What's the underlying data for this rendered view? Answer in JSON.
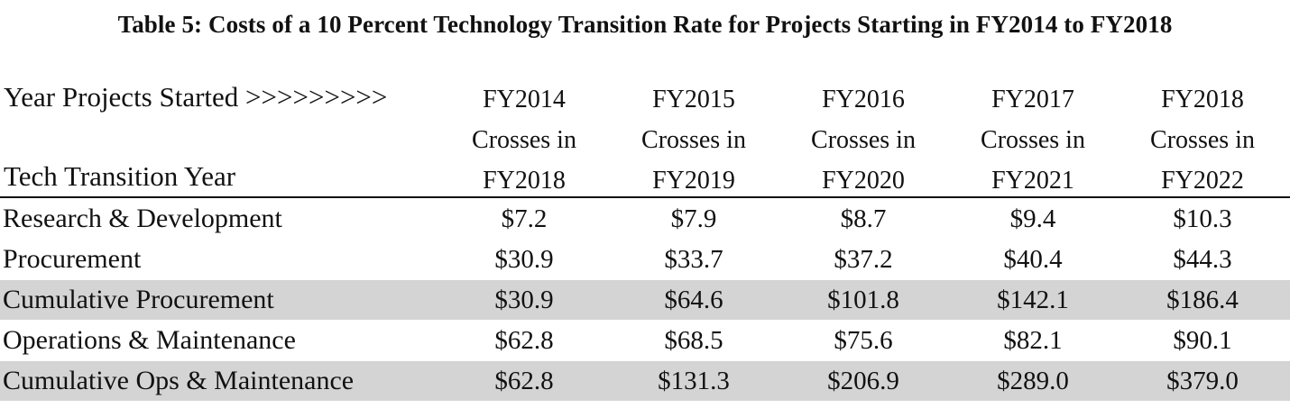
{
  "title": "Table 5: Costs of a 10 Percent Technology Transition Rate for Projects Starting in FY2014 to FY2018",
  "header": {
    "row_label_1": "Year Projects Started  >>>>>>>>>",
    "row_label_2": "Tech Transition Year",
    "columns": [
      {
        "year": "FY2014",
        "crosses": "Crosses in",
        "transition": "FY2018"
      },
      {
        "year": "FY2015",
        "crosses": "Crosses in",
        "transition": "FY2019"
      },
      {
        "year": "FY2016",
        "crosses": "Crosses in",
        "transition": "FY2020"
      },
      {
        "year": "FY2017",
        "crosses": "Crosses in",
        "transition": "FY2021"
      },
      {
        "year": "FY2018",
        "crosses": "Crosses in",
        "transition": "FY2022"
      }
    ]
  },
  "rows": [
    {
      "label": "Research & Development",
      "values": [
        "$7.2",
        "$7.9",
        "$8.7",
        "$9.4",
        "$10.3"
      ],
      "shaded": false
    },
    {
      "label": "Procurement",
      "values": [
        "$30.9",
        "$33.7",
        "$37.2",
        "$40.4",
        "$44.3"
      ],
      "shaded": false
    },
    {
      "label": "Cumulative Procurement",
      "values": [
        "$30.9",
        "$64.6",
        "$101.8",
        "$142.1",
        "$186.4"
      ],
      "shaded": true
    },
    {
      "label": "Operations & Maintenance",
      "values": [
        "$62.8",
        "$68.5",
        "$75.6",
        "$82.1",
        "$90.1"
      ],
      "shaded": false
    },
    {
      "label": "Cumulative Ops & Maintenance",
      "values": [
        "$62.8",
        "$131.3",
        "$206.9",
        "$289.0",
        "$379.0"
      ],
      "shaded": true
    }
  ]
}
